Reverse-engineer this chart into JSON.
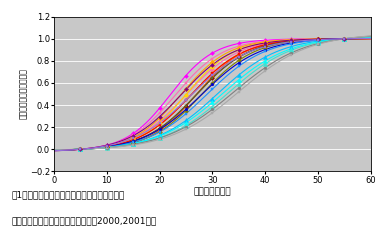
{
  "xlabel": "登熟日数（日）",
  "ylabel": "千粒重の相対的な増加率",
  "caption_line1": "図1．　気象的処理条件下における小麦４品種",
  "caption_line2": "　　の千粒重の相対的な増加曲線（2000,2001年）",
  "xlim": [
    0,
    60
  ],
  "ylim": [
    -0.2,
    1.2
  ],
  "xticks": [
    0,
    10,
    20,
    30,
    40,
    50,
    60
  ],
  "yticks": [
    -0.2,
    0,
    0.2,
    0.4,
    0.6,
    0.8,
    1.0,
    1.2
  ],
  "bg_color": "#c8c8c8",
  "curves": [
    {
      "color": "#ff00ff",
      "k": 0.24,
      "x0": 22,
      "marker": "D",
      "ms": 2.0,
      "lw": 0.8
    },
    {
      "color": "#ff69b4",
      "k": 0.22,
      "x0": 23,
      "marker": "s",
      "ms": 2.0,
      "lw": 0.8
    },
    {
      "color": "#ff69b4",
      "k": 0.2,
      "x0": 25,
      "marker": "D",
      "ms": 2.0,
      "lw": 0.8
    },
    {
      "color": "#ffa500",
      "k": 0.22,
      "x0": 24,
      "marker": "D",
      "ms": 2.5,
      "lw": 0.8
    },
    {
      "color": "#ffd700",
      "k": 0.22,
      "x0": 25,
      "marker": "o",
      "ms": 2.5,
      "lw": 0.8
    },
    {
      "color": "#ff8c00",
      "k": 0.2,
      "x0": 26,
      "marker": "s",
      "ms": 2.0,
      "lw": 0.8
    },
    {
      "color": "#ff6600",
      "k": 0.22,
      "x0": 27,
      "marker": "D",
      "ms": 2.0,
      "lw": 0.8
    },
    {
      "color": "#ff0000",
      "k": 0.2,
      "x0": 26,
      "marker": "s",
      "ms": 2.0,
      "lw": 0.8
    },
    {
      "color": "#8b0000",
      "k": 0.2,
      "x0": 27,
      "marker": "D",
      "ms": 2.0,
      "lw": 0.8
    },
    {
      "color": "#556b2f",
      "k": 0.2,
      "x0": 27,
      "marker": "s",
      "ms": 2.0,
      "lw": 0.8
    },
    {
      "color": "#808000",
      "k": 0.2,
      "x0": 28,
      "marker": "D",
      "ms": 2.0,
      "lw": 0.8
    },
    {
      "color": "#0000cd",
      "k": 0.18,
      "x0": 28,
      "marker": "o",
      "ms": 2.0,
      "lw": 0.8
    },
    {
      "color": "#1e90ff",
      "k": 0.18,
      "x0": 29,
      "marker": "s",
      "ms": 2.0,
      "lw": 0.8
    },
    {
      "color": "#00bfff",
      "k": 0.17,
      "x0": 31,
      "marker": "^",
      "ms": 3.0,
      "lw": 0.8
    },
    {
      "color": "#00ffff",
      "k": 0.16,
      "x0": 32,
      "marker": "^",
      "ms": 3.0,
      "lw": 0.8
    },
    {
      "color": "#40e0d0",
      "k": 0.16,
      "x0": 33,
      "marker": "^",
      "ms": 3.0,
      "lw": 0.8
    },
    {
      "color": "#808080",
      "k": 0.15,
      "x0": 34,
      "marker": "o",
      "ms": 2.0,
      "lw": 0.8
    },
    {
      "color": "#a9a9a9",
      "k": 0.15,
      "x0": 35,
      "marker": "s",
      "ms": 2.0,
      "lw": 0.8
    },
    {
      "color": "#800080",
      "k": 0.2,
      "x0": 24,
      "marker": "D",
      "ms": 2.0,
      "lw": 0.8
    },
    {
      "color": "#9370db",
      "k": 0.18,
      "x0": 26,
      "marker": "s",
      "ms": 2.0,
      "lw": 0.8
    }
  ]
}
